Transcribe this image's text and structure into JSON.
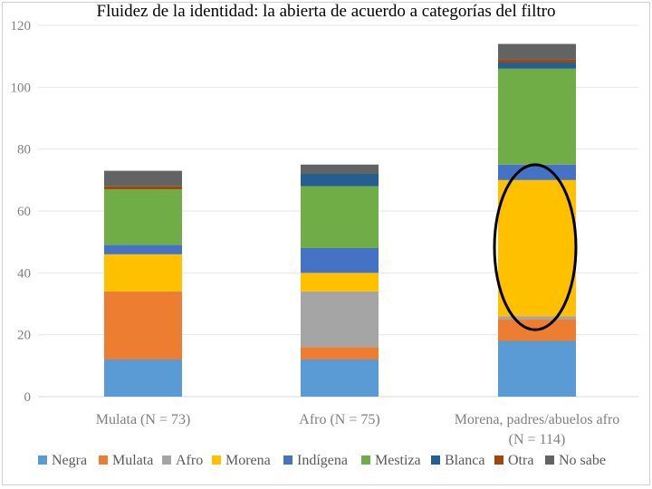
{
  "chart_data": {
    "type": "bar",
    "stacked": true,
    "title": "Fluidez de la identidad: la abierta de acuerdo a categorías del filtro",
    "ylim": [
      0,
      120
    ],
    "yticks": [
      0,
      20,
      40,
      60,
      80,
      100,
      120
    ],
    "grid": true,
    "legend_position": "bottom",
    "categories": [
      [
        "Mulata (N = 73)"
      ],
      [
        "Afro (N = 75)"
      ],
      [
        "Morena, padres/abuelos afro",
        "(N = 114)"
      ]
    ],
    "series": [
      {
        "name": "Negra",
        "color": "#5B9BD5",
        "values": [
          12,
          12,
          18
        ]
      },
      {
        "name": "Mulata",
        "color": "#ED7D31",
        "values": [
          22,
          4,
          7
        ]
      },
      {
        "name": "Afro",
        "color": "#A5A5A5",
        "values": [
          0,
          18,
          1
        ]
      },
      {
        "name": "Morena",
        "color": "#FFC000",
        "values": [
          12,
          6,
          44
        ]
      },
      {
        "name": "Indígena",
        "color": "#4472C4",
        "values": [
          3,
          8,
          5
        ]
      },
      {
        "name": "Mestiza",
        "color": "#70AD47",
        "values": [
          18,
          20,
          31
        ]
      },
      {
        "name": "Blanca",
        "color": "#255E91",
        "values": [
          0,
          4,
          2
        ]
      },
      {
        "name": "Otra",
        "color": "#9E480E",
        "values": [
          1,
          0,
          1
        ]
      },
      {
        "name": "No sabe",
        "color": "#636363",
        "values": [
          5,
          3,
          5
        ]
      }
    ],
    "highlight": {
      "category_index": 2,
      "series": "Morena",
      "shape": "ellipse",
      "color": "#000000"
    }
  }
}
